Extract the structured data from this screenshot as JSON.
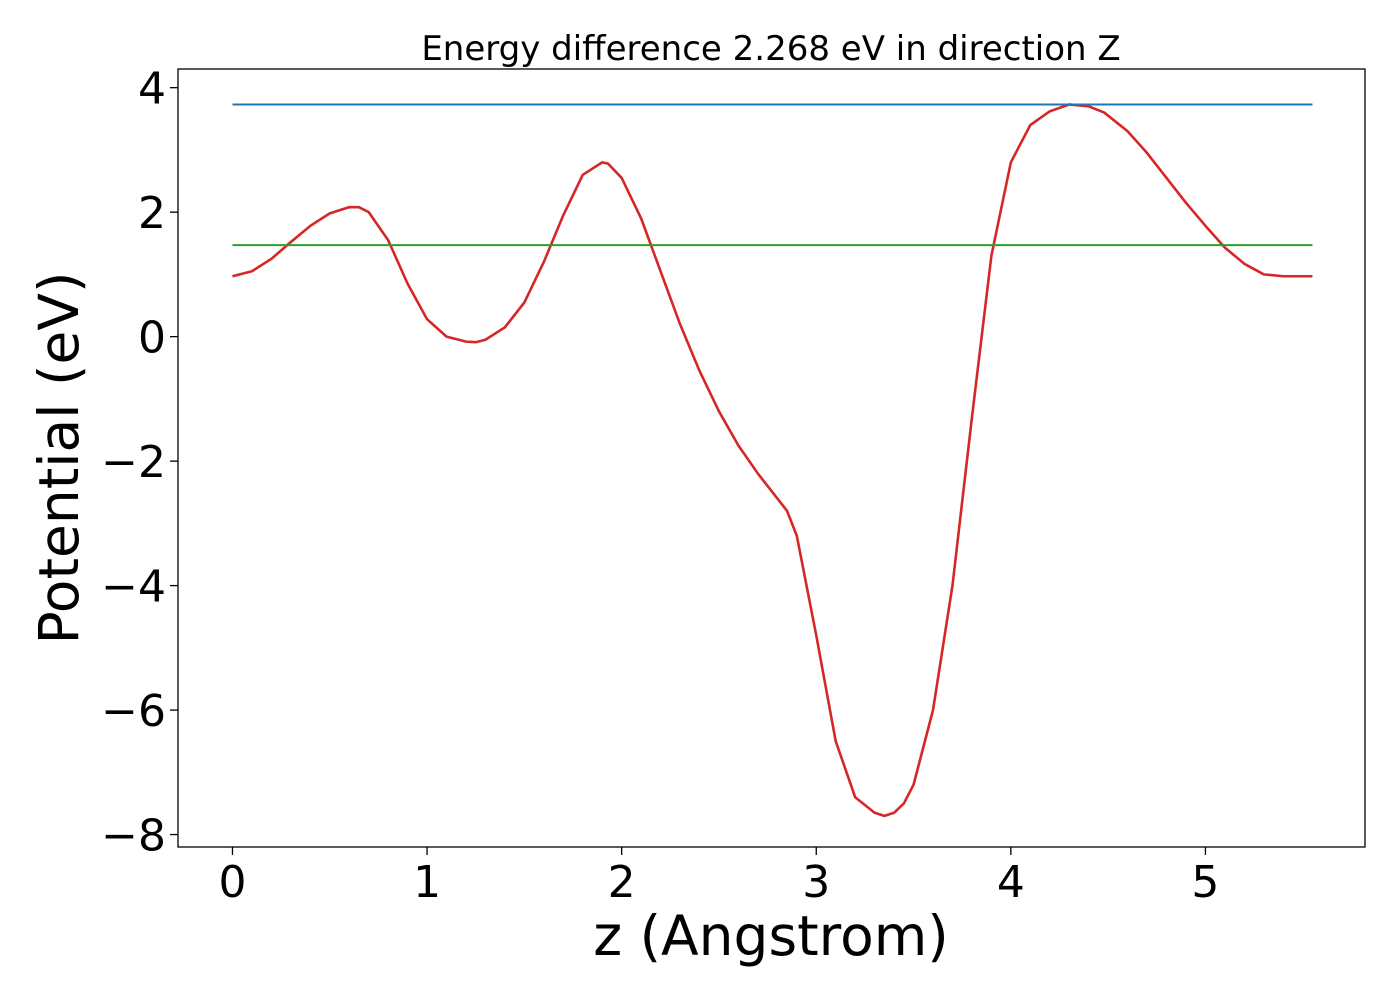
{
  "chart_data": {
    "type": "line",
    "title": "Energy difference 2.268 eV in direction Z",
    "xlabel": "z (Angstrom)",
    "ylabel": "Potential (eV)",
    "xlim": [
      -0.28,
      5.82
    ],
    "ylim": [
      -8.2,
      4.3
    ],
    "x_ticks": [
      0,
      1,
      2,
      3,
      4,
      5
    ],
    "x_tick_labels": [
      "0",
      "1",
      "2",
      "3",
      "4",
      "5"
    ],
    "y_ticks": [
      -8,
      -6,
      -4,
      -2,
      0,
      2,
      4
    ],
    "y_tick_labels": [
      "−8",
      "−6",
      "−4",
      "−2",
      "0",
      "2",
      "4"
    ],
    "grid": false,
    "series": [
      {
        "color": "#d62728",
        "x": [
          0,
          0.1,
          0.2,
          0.3,
          0.4,
          0.5,
          0.6,
          0.65,
          0.7,
          0.8,
          0.9,
          1.0,
          1.1,
          1.2,
          1.25,
          1.3,
          1.4,
          1.5,
          1.6,
          1.7,
          1.8,
          1.9,
          1.93,
          2.0,
          2.1,
          2.2,
          2.3,
          2.4,
          2.5,
          2.6,
          2.7,
          2.8,
          2.85,
          2.9,
          3.0,
          3.1,
          3.2,
          3.3,
          3.35,
          3.4,
          3.45,
          3.5,
          3.6,
          3.7,
          3.8,
          3.9,
          4.0,
          4.1,
          4.2,
          4.3,
          4.4,
          4.48,
          4.6,
          4.7,
          4.8,
          4.9,
          5.0,
          5.1,
          5.2,
          5.3,
          5.4,
          5.5,
          5.55
        ],
        "values": [
          0.97,
          1.05,
          1.25,
          1.52,
          1.78,
          1.98,
          2.08,
          2.08,
          2.0,
          1.55,
          0.85,
          0.28,
          0.0,
          -0.08,
          -0.09,
          -0.05,
          0.15,
          0.55,
          1.2,
          1.95,
          2.6,
          2.8,
          2.78,
          2.55,
          1.9,
          1.05,
          0.2,
          -0.55,
          -1.2,
          -1.75,
          -2.2,
          -2.6,
          -2.8,
          -3.2,
          -4.8,
          -6.5,
          -7.4,
          -7.65,
          -7.7,
          -7.65,
          -7.5,
          -7.2,
          -6.0,
          -4.0,
          -1.3,
          1.3,
          2.8,
          3.4,
          3.62,
          3.73,
          3.7,
          3.6,
          3.3,
          2.95,
          2.55,
          2.15,
          1.78,
          1.43,
          1.17,
          1.0,
          0.97,
          0.97,
          0.97
        ]
      },
      {
        "color": "#1f77b4",
        "x": [
          0,
          5.55
        ],
        "values": [
          3.73,
          3.73
        ]
      },
      {
        "color": "#2ca02c",
        "x": [
          0,
          5.55
        ],
        "values": [
          1.47,
          1.47
        ]
      }
    ]
  }
}
